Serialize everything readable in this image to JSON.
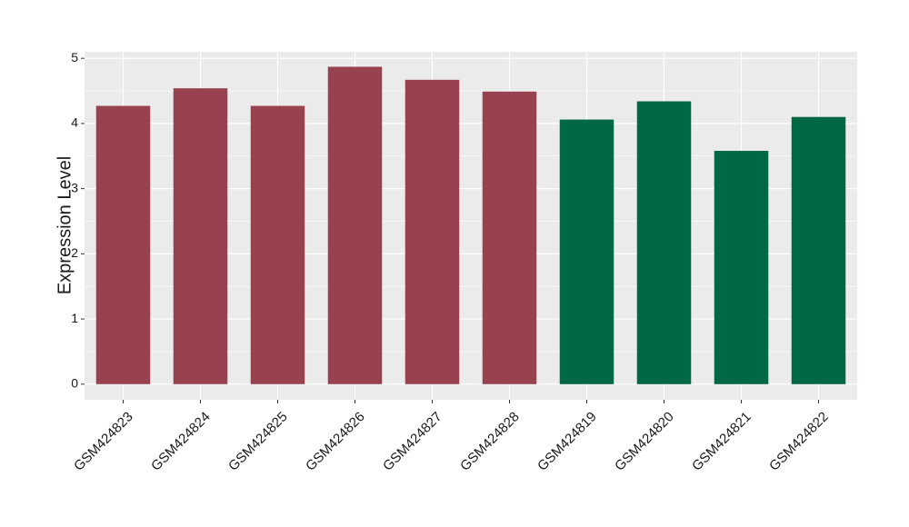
{
  "chart_data": {
    "type": "bar",
    "y_label": "Expression Level",
    "categories": [
      "GSM424823",
      "GSM424824",
      "GSM424825",
      "GSM424826",
      "GSM424827",
      "GSM424828",
      "GSM424819",
      "GSM424820",
      "GSM424821",
      "GSM424822"
    ],
    "values": [
      4.27,
      4.54,
      4.27,
      4.87,
      4.67,
      4.49,
      4.06,
      4.34,
      3.58,
      4.1
    ],
    "colors": [
      "#99424f",
      "#99424f",
      "#99424f",
      "#99424f",
      "#99424f",
      "#99424f",
      "#006845",
      "#006845",
      "#006845",
      "#006845"
    ],
    "ylim": [
      -0.24,
      5.1
    ],
    "yticks": [
      0,
      1,
      2,
      3,
      4,
      5
    ],
    "minor_yticks": [
      0.5,
      1.5,
      2.5,
      3.5,
      4.5
    ],
    "grid": true,
    "background": "#ebebeb"
  }
}
